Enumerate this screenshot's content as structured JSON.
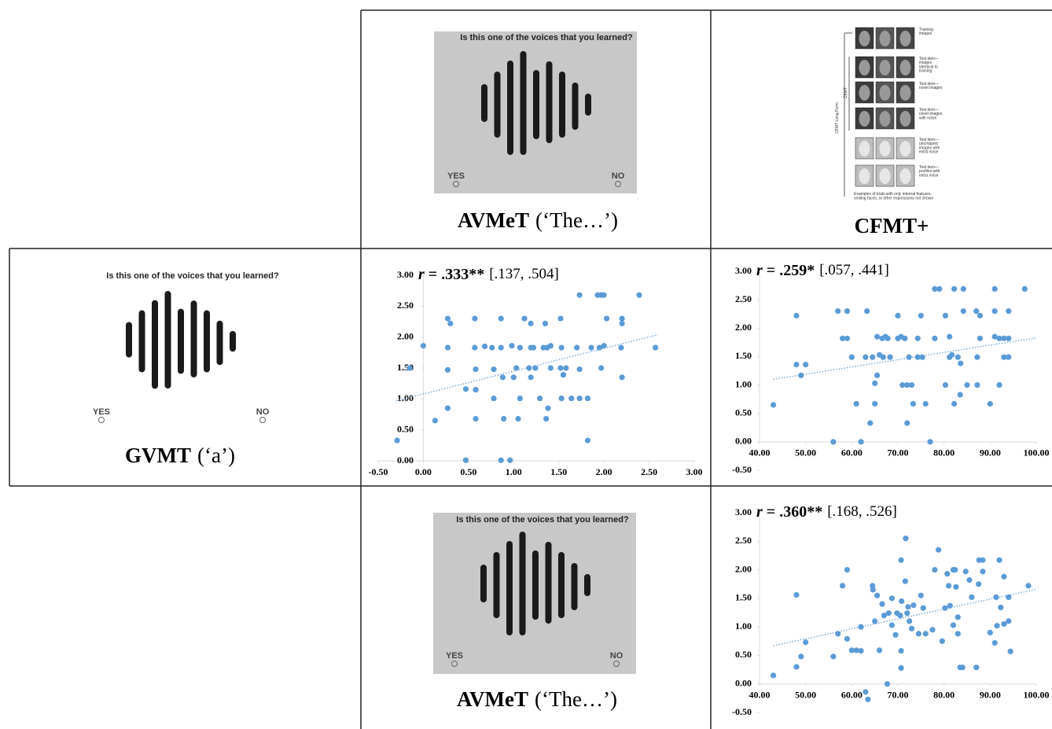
{
  "panels": {
    "top_voice": {
      "prompt": "Is this one of the voices that you learned?",
      "yes": "YES",
      "no": "NO",
      "label": [
        "AVMeT",
        "(‘The…’)"
      ]
    },
    "gvmt": {
      "prompt": "Is this one of the voices that you learned?",
      "yes": "YES",
      "no": "NO",
      "label": [
        "GVMT",
        "(‘a’)"
      ]
    },
    "bottom_voice": {
      "prompt": "Is this one of the voices that you learned?",
      "yes": "YES",
      "no": "NO",
      "label": [
        "AVMeT",
        "(‘The…’)"
      ]
    },
    "cfmt": {
      "label": "CFMT+",
      "bracket_outer": "CFMT Long Form",
      "bracket_inner": "CFMT",
      "rows": [
        [
          "Training",
          "images"
        ],
        [
          "Test item—",
          "images",
          "identical to",
          "training"
        ],
        [
          "Test item—",
          "novel images"
        ],
        [
          "Test item—",
          "novel images",
          "with noise"
        ],
        [
          "Test item—",
          "uncropped",
          "images with",
          "extra noise"
        ],
        [
          "Test item—",
          "profiles with",
          "extra noise"
        ]
      ],
      "footnote": [
        "Examples of trials with only internal features,",
        "smiling faces, or other expressions not shown"
      ]
    }
  },
  "chart_data": [
    {
      "type": "scatter",
      "title": [
        "r",
        "= .333**",
        "[.137, .504]"
      ],
      "color": "#5b9bd5",
      "xlim": [
        -0.5,
        3
      ],
      "ylim": [
        0,
        3
      ],
      "xticks": [
        {
          "value": -0.5,
          "label": "-0.50"
        },
        {
          "value": 0,
          "label": "0.00"
        },
        {
          "value": 0.5,
          "label": "0.50"
        },
        {
          "value": 1,
          "label": "1.00"
        },
        {
          "value": 1.5,
          "label": "1.50"
        },
        {
          "value": 2,
          "label": "2.00"
        },
        {
          "value": 2.5,
          "label": "2.50"
        },
        {
          "value": 3,
          "label": "3.00"
        }
      ],
      "yticks": [
        {
          "value": 0,
          "label": "0.00"
        },
        {
          "value": 0.5,
          "label": "0.50"
        },
        {
          "value": 1,
          "label": "1.00"
        },
        {
          "value": 1.5,
          "label": "1.50"
        },
        {
          "value": 2,
          "label": "2.00"
        },
        {
          "value": 2.5,
          "label": "2.50"
        },
        {
          "value": 3,
          "label": "3.00"
        }
      ],
      "x": [
        -0.29,
        0,
        -0.15,
        0.13,
        0.27,
        0.3,
        0.27,
        0.27,
        0.27,
        0.47,
        0.47,
        0.57,
        0.57,
        0.58,
        0.58,
        0.58,
        0.68,
        0.76,
        0.78,
        0.78,
        0.86,
        0.86,
        0.86,
        0.88,
        0.89,
        0.96,
        0.98,
        1,
        1.03,
        1.05,
        1.07,
        1.07,
        1.12,
        1.17,
        1.19,
        1.19,
        1.19,
        1.22,
        1.24,
        1.29,
        1.33,
        1.35,
        1.36,
        1.37,
        1.38,
        1.41,
        1.41,
        1.52,
        1.52,
        1.53,
        1.53,
        1.55,
        1.58,
        1.64,
        1.7,
        1.73,
        1.73,
        1.73,
        1.82,
        1.82,
        1.86,
        1.93,
        1.97,
        2,
        1.95,
        1.97,
        2,
        2.03,
        2.2,
        2.2,
        2.19,
        2.2,
        2.39,
        2.57
      ],
      "values": [
        0.33,
        1.86,
        1.5,
        0.65,
        2.3,
        2.22,
        1.83,
        1.47,
        0.85,
        0.01,
        1.16,
        2.3,
        1.83,
        1.48,
        1.15,
        0.68,
        1.85,
        1.83,
        1.48,
        1.01,
        1.83,
        2.3,
        0.01,
        1.35,
        0.68,
        0.01,
        1.86,
        1.35,
        1.5,
        0.68,
        1.83,
        1.01,
        2.3,
        1.5,
        1.83,
        2.22,
        1.35,
        1.83,
        1.5,
        1.01,
        1.83,
        2.22,
        0.68,
        1.83,
        0.85,
        1.86,
        1.5,
        2.3,
        1.5,
        1.83,
        1.01,
        1.39,
        1.5,
        1.01,
        1.83,
        2.68,
        1.01,
        1.48,
        1.01,
        0.33,
        1.83,
        2.68,
        2.68,
        2.68,
        1.83,
        1.5,
        1.86,
        2.3,
        2.3,
        2.22,
        1.83,
        1.35,
        2.68,
        1.83
      ],
      "trendline": {
        "x": [
          -0.3,
          2.6
        ],
        "values": [
          0.97,
          2.04
        ]
      }
    },
    {
      "type": "scatter",
      "title": [
        "r",
        "= .259*",
        "[.057, .441]"
      ],
      "color": "#5b9bd5",
      "xlim": [
        40,
        100
      ],
      "ylim": [
        -0.5,
        3
      ],
      "xticks": [
        {
          "value": 40,
          "label": "40.00"
        },
        {
          "value": 50,
          "label": "50.00"
        },
        {
          "value": 60,
          "label": "60.00"
        },
        {
          "value": 70,
          "label": "70.00"
        },
        {
          "value": 80,
          "label": "80.00"
        },
        {
          "value": 90,
          "label": "90.00"
        },
        {
          "value": 100,
          "label": "100.00"
        }
      ],
      "yticks": [
        {
          "value": -0.5,
          "label": "-0.50"
        },
        {
          "value": 0,
          "label": "0.00"
        },
        {
          "value": 0.5,
          "label": "0.50"
        },
        {
          "value": 1,
          "label": "1.00"
        },
        {
          "value": 1.5,
          "label": "1.50"
        },
        {
          "value": 2,
          "label": "2.00"
        },
        {
          "value": 2.5,
          "label": "2.50"
        },
        {
          "value": 3,
          "label": "3.00"
        }
      ],
      "x": [
        43,
        48,
        48,
        49,
        50,
        56,
        57,
        58,
        59,
        59,
        60,
        61,
        62,
        63,
        63.3,
        64,
        64.5,
        65,
        65,
        65.5,
        65.5,
        66,
        66.6,
        66.8,
        67.3,
        67.8,
        68.3,
        70,
        70,
        70.7,
        71,
        71.5,
        72,
        72,
        72.4,
        73,
        73.3,
        74.3,
        74.3,
        75,
        75.3,
        76,
        77,
        78,
        78,
        79,
        80.3,
        80.3,
        81.2,
        81.2,
        81.7,
        82.2,
        82.2,
        83,
        83.6,
        84.2,
        84.2,
        83.5,
        85,
        87,
        87.2,
        87.8,
        87.8,
        87.2,
        90,
        91,
        91,
        91,
        92,
        92,
        93,
        94,
        94,
        94,
        93,
        97.5
      ],
      "values": [
        0.65,
        2.22,
        1.36,
        1.17,
        1.36,
        0,
        2.3,
        1.82,
        1.82,
        2.3,
        1.49,
        0.67,
        0,
        1.49,
        2.3,
        0.33,
        1.49,
        0.67,
        1.03,
        1.85,
        1.17,
        1.53,
        1.82,
        1.49,
        1.85,
        1.82,
        1.49,
        2.22,
        1.82,
        1.85,
        1,
        1.82,
        1,
        0.33,
        1.49,
        1,
        0.67,
        1.82,
        1.49,
        2.22,
        1.49,
        0.67,
        0,
        1.82,
        2.69,
        2.69,
        2.22,
        1,
        1.85,
        1.49,
        1.53,
        2.69,
        0.67,
        1.49,
        1.38,
        2.69,
        2.3,
        0.83,
        1,
        2.3,
        1,
        2.22,
        1.82,
        1.49,
        0.67,
        2.69,
        2.3,
        1.85,
        1,
        1.82,
        1.82,
        1.82,
        2.3,
        1.49,
        1.49,
        2.69
      ],
      "trendline": {
        "x": [
          43,
          100
        ],
        "values": [
          1.1,
          1.83
        ]
      }
    },
    {
      "type": "scatter",
      "title": [
        "r",
        "= .360**",
        "[.168, .526]"
      ],
      "color": "#5b9bd5",
      "xlim": [
        40,
        100
      ],
      "ylim": [
        -0.5,
        3
      ],
      "xticks": [
        {
          "value": 40,
          "label": "40.00"
        },
        {
          "value": 50,
          "label": "50.00"
        },
        {
          "value": 60,
          "label": "60.00"
        },
        {
          "value": 70,
          "label": "70.00"
        },
        {
          "value": 80,
          "label": "80.00"
        },
        {
          "value": 90,
          "label": "90.00"
        },
        {
          "value": 100,
          "label": "100.00"
        }
      ],
      "yticks": [
        {
          "value": -0.5,
          "label": "-0.50"
        },
        {
          "value": 0,
          "label": "0.00"
        },
        {
          "value": 0.5,
          "label": "0.50"
        },
        {
          "value": 1,
          "label": "1.00"
        },
        {
          "value": 1.5,
          "label": "1.50"
        },
        {
          "value": 2,
          "label": "2.00"
        },
        {
          "value": 2.5,
          "label": "2.50"
        },
        {
          "value": 3,
          "label": "3.00"
        }
      ],
      "x": [
        43,
        48,
        48,
        49,
        50,
        56,
        57,
        58,
        59,
        59,
        60,
        61,
        62,
        63,
        63.5,
        62,
        64.5,
        64.6,
        65,
        65.5,
        66,
        66.6,
        67,
        67.7,
        68,
        68.7,
        68.7,
        69.8,
        69.5,
        70.5,
        70.8,
        70.7,
        70.7,
        70.7,
        71.6,
        71.7,
        72,
        72.2,
        72.5,
        73,
        73.4,
        74.5,
        75,
        75.5,
        76,
        77.5,
        78,
        78.8,
        79.6,
        80.2,
        80.7,
        81,
        81.3,
        82,
        82,
        82.4,
        82.6,
        83,
        83,
        83.5,
        84,
        84.7,
        85.5,
        86,
        87,
        87.5,
        87.6,
        88.4,
        88.4,
        90,
        91,
        91.5,
        92,
        91.3,
        92.3,
        93,
        93,
        94,
        94,
        94.4,
        98.3
      ],
      "values": [
        0.15,
        1.56,
        0.3,
        0.48,
        0.73,
        0.48,
        0.88,
        1.72,
        2,
        0.79,
        0.59,
        0.59,
        0.58,
        -0.14,
        -0.27,
        1,
        1.72,
        1.65,
        1.1,
        1.55,
        0.59,
        1.4,
        1.2,
        0,
        1.24,
        1.5,
        1.03,
        1.24,
        0.86,
        1.2,
        1.45,
        0.58,
        0.28,
        2.17,
        1.8,
        2.55,
        1.24,
        1.35,
        1.1,
        0.97,
        1.38,
        0.88,
        1.55,
        1.33,
        0.88,
        0.95,
        2,
        2.35,
        0.75,
        1.33,
        1.93,
        1.72,
        1.37,
        1.03,
        2,
        2,
        1.7,
        1.17,
        0.88,
        0.29,
        0.29,
        1.97,
        1.82,
        1.52,
        0.29,
        1.75,
        2.17,
        2.17,
        1.97,
        0.9,
        0.72,
        1.02,
        2.17,
        1.52,
        1.34,
        1.88,
        1.05,
        1.1,
        1.52,
        0.57,
        1.72
      ],
      "trendline": {
        "x": [
          43,
          100
        ],
        "values": [
          0.67,
          1.66
        ]
      }
    }
  ]
}
